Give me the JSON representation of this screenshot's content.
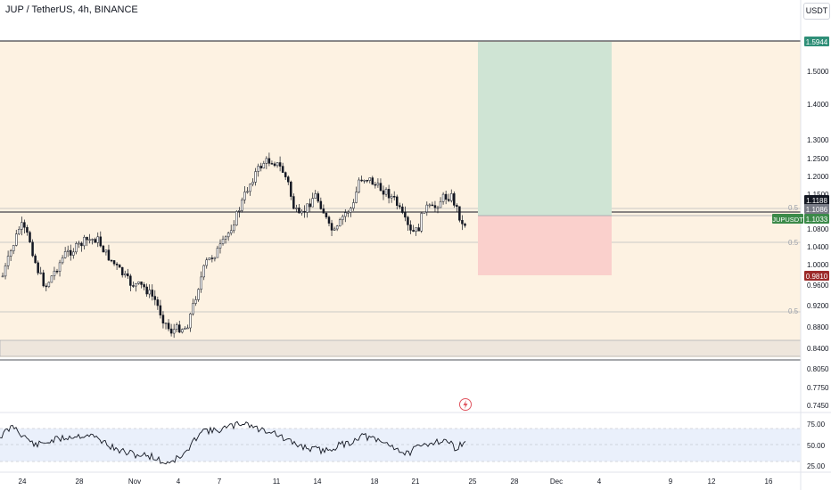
{
  "header": {
    "title": "JUP / TetherUS, 4h, BINANCE",
    "currency_label": "USDT"
  },
  "colors": {
    "background_zone": "#fdf2e2",
    "profit_zone": "#cfe4d4",
    "loss_zone": "#fad0cc",
    "candle": "#131722",
    "rsi_band": "#eaf0fb",
    "rsi_line": "#131722",
    "price_tag_green": "#2f8f78",
    "price_tag_red": "#9c2a2a",
    "price_tag_dark": "#131722",
    "price_tag_gray": "#787b86",
    "symbol_tag": "#3b8a49"
  },
  "price_axis": {
    "ticks": [
      "1.5000",
      "1.4000",
      "1.3000",
      "1.2500",
      "1.2000",
      "1.1500",
      "1.0800",
      "1.0400",
      "1.0000",
      "0.9600",
      "0.9200",
      "0.8800",
      "0.8400",
      "0.8050",
      "0.7750",
      "0.7450"
    ],
    "tags": {
      "target": "1.5944",
      "current_high": "1.1188",
      "entry": "1.1086",
      "last": "1.1033",
      "stop": "0.9810"
    },
    "symbol_label": "JUPUSDT"
  },
  "level_labels": [
    "0.5",
    "0.5",
    "0.5"
  ],
  "rsi": {
    "ticks": [
      "75.00",
      "50.00",
      "25.00"
    ],
    "upper": 70,
    "lower": 30,
    "mid": 50
  },
  "time_axis": {
    "ticks": [
      "24",
      "28",
      "Nov",
      "4",
      "7",
      "11",
      "14",
      "18",
      "21",
      "25",
      "28",
      "Dec",
      "4",
      "9",
      "12",
      "16"
    ]
  },
  "icons": {
    "flash": "lightning-icon"
  }
}
